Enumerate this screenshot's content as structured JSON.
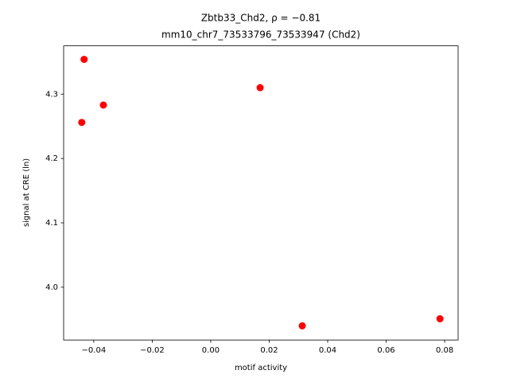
{
  "chart_data": {
    "type": "scatter",
    "title": "Zbtb33_Chd2, ρ = −0.81",
    "subtitle": "mm10_chr7_73533796_73533947 (Chd2)",
    "x_label": "motif activity",
    "y_label": "signal at CRE (ln)",
    "color": "#ff0000",
    "x": [
      -0.0433,
      -0.0367,
      -0.0441,
      0.0169,
      0.0313,
      0.0784
    ],
    "values": [
      4.354,
      4.283,
      4.256,
      4.31,
      3.94,
      3.951
    ],
    "xlim": [
      -0.0503,
      0.0846
    ],
    "ylim": [
      3.918,
      4.375
    ],
    "xticks": [
      {
        "value": -0.04,
        "label": "−0.04"
      },
      {
        "value": -0.02,
        "label": "−0.02"
      },
      {
        "value": 0,
        "label": "0.00"
      },
      0.02,
      0.04,
      0.06,
      0.08
    ],
    "yticks": [
      {
        "value": 4.0,
        "label": "4.0"
      },
      4.1,
      4.2,
      4.3
    ],
    "grid": false
  }
}
